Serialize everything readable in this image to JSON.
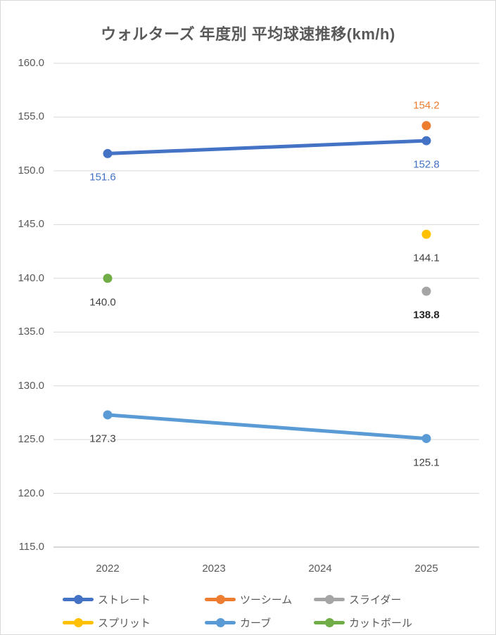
{
  "title": "ウォルターズ 年度別 平均球速推移(km/h)",
  "colors": {
    "background": "#FFFFFF",
    "border": "#D9D9D9",
    "gridline": "#D9D9D9",
    "axis_line": "#BFBFBF",
    "axis_text": "#595959",
    "title_text": "#595959",
    "legend_text": "#595959",
    "data_label_default": "#404040"
  },
  "chart_data": {
    "type": "line",
    "title": "ウォルターズ 年度別 平均球速推移(km/h)",
    "categories": [
      "2022",
      "2023",
      "2024",
      "2025"
    ],
    "xlabel": "",
    "ylabel": "",
    "ylim": [
      115.0,
      160.0
    ],
    "ytick_step": 5.0,
    "y_tick_labels": [
      "160.0",
      "155.0",
      "150.0",
      "145.0",
      "140.0",
      "135.0",
      "130.0",
      "125.0",
      "120.0",
      "115.0"
    ],
    "grid": "horizontal",
    "legend_position": "bottom",
    "series": [
      {
        "name": "ストレート",
        "color": "#4472C4",
        "points": [
          {
            "x": "2022",
            "y": 151.6,
            "label": "151.6",
            "label_pos": "below",
            "label_color": "#4472C4"
          },
          {
            "x": "2025",
            "y": 152.8,
            "label": "152.8",
            "label_pos": "below",
            "label_color": "#4472C4"
          }
        ]
      },
      {
        "name": "ツーシーム",
        "color": "#ED7D31",
        "points": [
          {
            "x": "2025",
            "y": 154.2,
            "label": "154.2",
            "label_pos": "above",
            "label_color": "#ED7D31"
          }
        ]
      },
      {
        "name": "スライダー",
        "color": "#A5A5A5",
        "points": [
          {
            "x": "2025",
            "y": 138.8,
            "label": "138.8",
            "label_pos": "below",
            "label_color": "#262626",
            "label_bold": true
          }
        ]
      },
      {
        "name": "スプリット",
        "color": "#FFC000",
        "points": [
          {
            "x": "2025",
            "y": 144.1,
            "label": "144.1",
            "label_pos": "below",
            "label_color": "#404040"
          }
        ]
      },
      {
        "name": "カーブ",
        "color": "#5B9BD5",
        "points": [
          {
            "x": "2022",
            "y": 127.3,
            "label": "127.3",
            "label_pos": "below",
            "label_color": "#404040"
          },
          {
            "x": "2025",
            "y": 125.1,
            "label": "125.1",
            "label_pos": "below",
            "label_color": "#404040"
          }
        ]
      },
      {
        "name": "カットボール",
        "color": "#70AD47",
        "points": [
          {
            "x": "2022",
            "y": 140.0,
            "label": "140.0",
            "label_pos": "below",
            "label_color": "#404040"
          }
        ]
      }
    ],
    "legend": [
      {
        "label": "ストレート",
        "color": "#4472C4"
      },
      {
        "label": "ツーシーム",
        "color": "#ED7D31"
      },
      {
        "label": "スライダー",
        "color": "#A5A5A5"
      },
      {
        "label": "スプリット",
        "color": "#FFC000"
      },
      {
        "label": "カーブ",
        "color": "#5B9BD5"
      },
      {
        "label": "カットボール",
        "color": "#70AD47"
      }
    ]
  }
}
